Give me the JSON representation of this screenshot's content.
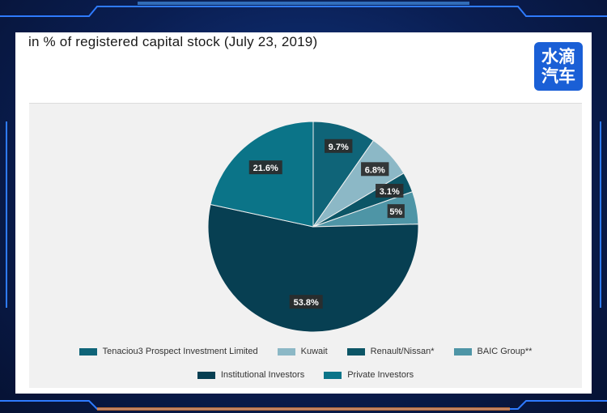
{
  "header": {
    "title": "in % of registered capital stock (July 23, 2019)",
    "logo_line1": "水滴",
    "logo_line2": "汽车"
  },
  "chart_data": {
    "type": "pie",
    "title": "in % of registered capital stock (July 23, 2019)",
    "legend_position": "bottom",
    "slices": [
      {
        "name": "Tenaciou3 Prospect Investment Limited",
        "value": 9.7,
        "label": "9.7%",
        "color": "#0f6478"
      },
      {
        "name": "Kuwait",
        "value": 6.8,
        "label": "6.8%",
        "color": "#8cb8c6"
      },
      {
        "name": "Renault/Nissan*",
        "value": 3.1,
        "label": "3.1%",
        "color": "#0c5566"
      },
      {
        "name": "BAIC Group**",
        "value": 5,
        "label": "5%",
        "color": "#4e95a6"
      },
      {
        "name": "Institutional Investors",
        "value": 53.8,
        "label": "53.8%",
        "color": "#073f52"
      },
      {
        "name": "Private Investors",
        "value": 21.6,
        "label": "21.6%",
        "color": "#0b7488"
      }
    ]
  }
}
